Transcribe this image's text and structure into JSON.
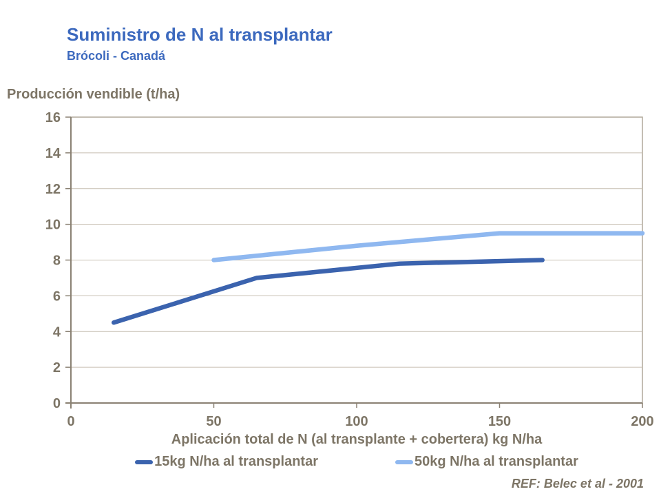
{
  "chart_data": {
    "type": "line",
    "title": "Suministro de N al transplantar",
    "subtitle": "Brócoli - Canadá",
    "ylabel": "Producción vendible (t/ha)",
    "xlabel": "Aplicación total de N (al transplante + cobertera) kg N/ha",
    "annotation": "REF: Belec et al - 2001",
    "xlim": [
      0,
      200
    ],
    "ylim": [
      0,
      16
    ],
    "xticks": [
      0,
      50,
      100,
      150,
      200
    ],
    "yticks": [
      0,
      2,
      4,
      6,
      8,
      10,
      12,
      14,
      16
    ],
    "grid": "horizontal",
    "legend_position": "bottom",
    "series": [
      {
        "name": "15kg N/ha al transplantar",
        "color": "#3b63ae",
        "points": [
          [
            15,
            4.5
          ],
          [
            65,
            7
          ],
          [
            115,
            7.8
          ],
          [
            165,
            8
          ]
        ]
      },
      {
        "name": "50kg N/ha al transplantar",
        "color": "#8fb8f0",
        "points": [
          [
            50,
            8
          ],
          [
            100,
            8.8
          ],
          [
            150,
            9.5
          ],
          [
            200,
            9.5
          ]
        ]
      }
    ]
  },
  "colors": {
    "title_blue": "#3c69be",
    "axis_text": "#7d7566",
    "axis_line": "#8a8173",
    "gridline": "#c6beb0",
    "plot_border": "#b0a89a",
    "background": "#ffffff"
  }
}
